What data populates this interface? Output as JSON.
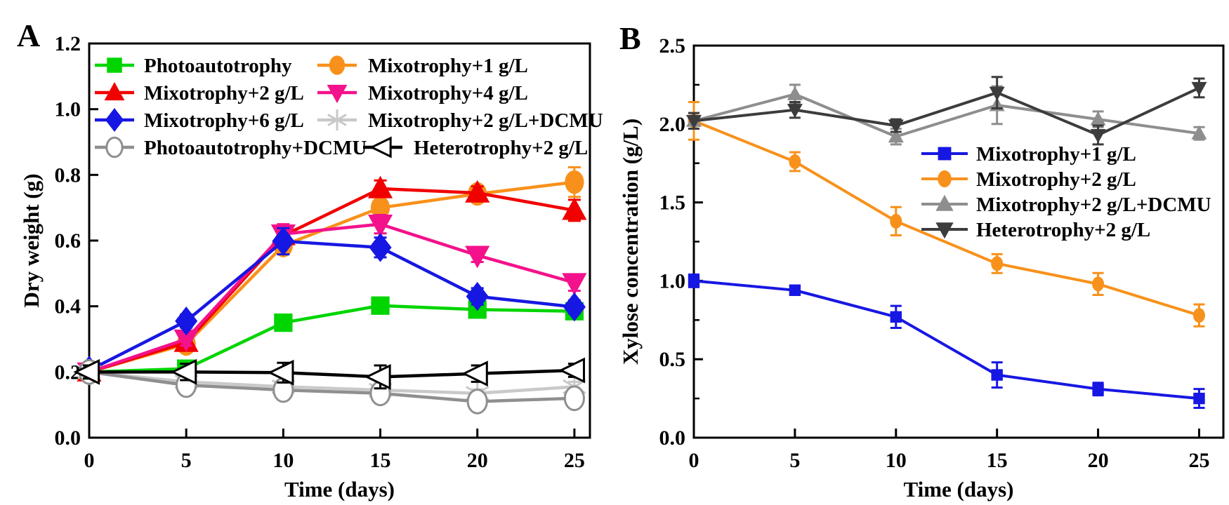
{
  "figure": {
    "background": "#ffffff",
    "panel_letters": [
      "A",
      "B"
    ]
  },
  "chart_data": [
    {
      "type": "line",
      "panel_label": "A",
      "title": "",
      "xlabel": "Time (days)",
      "ylabel": "Dry weight (g)",
      "x": [
        0,
        5,
        10,
        15,
        20,
        25
      ],
      "xticks": [
        0,
        5,
        10,
        15,
        20,
        25
      ],
      "xlim": [
        0,
        25.8
      ],
      "ylim": [
        0,
        1.2
      ],
      "yticks": [
        0,
        0.2,
        0.4,
        0.6,
        0.8,
        1.0,
        1.2
      ],
      "grid": false,
      "legend": {
        "position": "inside-top-left",
        "columns": 2
      },
      "series": [
        {
          "name": "Photoautotrophy",
          "color": "#00d500",
          "marker": "square",
          "style": "filled",
          "values": [
            0.2,
            0.21,
            0.35,
            0.402,
            0.39,
            0.385
          ],
          "errors": [
            0.01,
            0.012,
            0.015,
            0.018,
            0.02,
            0.02
          ]
        },
        {
          "name": "Mixotrophy+1 g/L",
          "color": "#f8911b",
          "marker": "circle",
          "style": "filled",
          "values": [
            0.2,
            0.285,
            0.585,
            0.7,
            0.742,
            0.778
          ],
          "errors": [
            0.008,
            0.015,
            0.02,
            0.02,
            0.015,
            0.045
          ]
        },
        {
          "name": "Mixotrophy+2 g/L",
          "color": "#f10000",
          "marker": "triangle-up",
          "style": "filled",
          "values": [
            0.2,
            0.29,
            0.615,
            0.758,
            0.745,
            0.692
          ],
          "errors": [
            0.008,
            0.015,
            0.02,
            0.025,
            0.02,
            0.032
          ]
        },
        {
          "name": "Mixotrophy+4 g/L",
          "color": "#f3128b",
          "marker": "triangle-down",
          "style": "filled",
          "values": [
            0.2,
            0.3,
            0.62,
            0.65,
            0.555,
            0.472
          ],
          "errors": [
            0.008,
            0.02,
            0.03,
            0.028,
            0.02,
            0.025
          ]
        },
        {
          "name": "Mixotrophy+6 g/L",
          "color": "#1717e3",
          "marker": "diamond",
          "style": "filled",
          "values": [
            0.205,
            0.355,
            0.598,
            0.579,
            0.43,
            0.398
          ],
          "errors": [
            0.01,
            0.02,
            0.04,
            0.03,
            0.025,
            0.02
          ]
        },
        {
          "name": "Mixotrophy+2 g/L+DCMU",
          "color": "#c9c9c9",
          "marker": "asterisk",
          "style": "line",
          "values": [
            0.2,
            0.17,
            0.155,
            0.145,
            0.135,
            0.155
          ],
          "errors": [
            0.008,
            0.012,
            0.012,
            0.012,
            0.012,
            0.015
          ]
        },
        {
          "name": "Photoautotrophy+DCMU",
          "color": "#8f8f8f",
          "marker": "circle",
          "style": "open",
          "values": [
            0.2,
            0.16,
            0.145,
            0.135,
            0.11,
            0.12
          ],
          "errors": [
            0.008,
            0.015,
            0.02,
            0.02,
            0.02,
            0.02
          ]
        },
        {
          "name": "Heterotrophy+2 g/L",
          "color": "#000000",
          "marker": "triangle-left",
          "style": "open",
          "values": [
            0.2,
            0.2,
            0.198,
            0.185,
            0.195,
            0.205
          ],
          "errors": [
            0.02,
            0.025,
            0.03,
            0.035,
            0.025,
            0.02
          ]
        }
      ]
    },
    {
      "type": "line",
      "panel_label": "B",
      "title": "",
      "xlabel": "Time (days)",
      "ylabel": "Xylose concentration (g/L)",
      "x": [
        0,
        5,
        10,
        15,
        20,
        25
      ],
      "xticks": [
        0,
        5,
        10,
        15,
        20,
        25
      ],
      "xlim": [
        0,
        26.2
      ],
      "ylim": [
        0,
        2.5
      ],
      "yticks": [
        0,
        0.5,
        1.0,
        1.5,
        2.0,
        2.5
      ],
      "yminor_step": 0.25,
      "grid": false,
      "legend": {
        "position": "inside-middle-right",
        "columns": 1
      },
      "series": [
        {
          "name": "Mixotrophy+1 g/L",
          "color": "#1717e3",
          "marker": "square",
          "style": "filled",
          "values": [
            1.0,
            0.94,
            0.77,
            0.4,
            0.31,
            0.25
          ],
          "errors": [
            0.04,
            0.03,
            0.07,
            0.08,
            0.04,
            0.06
          ]
        },
        {
          "name": "Mixotrophy+2 g/L",
          "color": "#f8911b",
          "marker": "circle",
          "style": "filled",
          "values": [
            2.02,
            1.76,
            1.38,
            1.11,
            0.98,
            0.78
          ],
          "errors": [
            0.12,
            0.06,
            0.09,
            0.06,
            0.07,
            0.07
          ]
        },
        {
          "name": "Mixotrophy+2 g/L+DCMU",
          "color": "#8e8e8e",
          "marker": "triangle-up",
          "style": "filled",
          "values": [
            2.02,
            2.19,
            1.92,
            2.12,
            2.03,
            1.94
          ],
          "errors": [
            0.05,
            0.06,
            0.05,
            0.12,
            0.05,
            0.04
          ]
        },
        {
          "name": "Heterotrophy+2 g/L",
          "color": "#3c3c3c",
          "marker": "triangle-down",
          "style": "filled",
          "values": [
            2.02,
            2.09,
            1.99,
            2.2,
            1.93,
            2.23
          ],
          "errors": [
            0.05,
            0.05,
            0.04,
            0.1,
            0.06,
            0.06
          ]
        }
      ]
    }
  ]
}
